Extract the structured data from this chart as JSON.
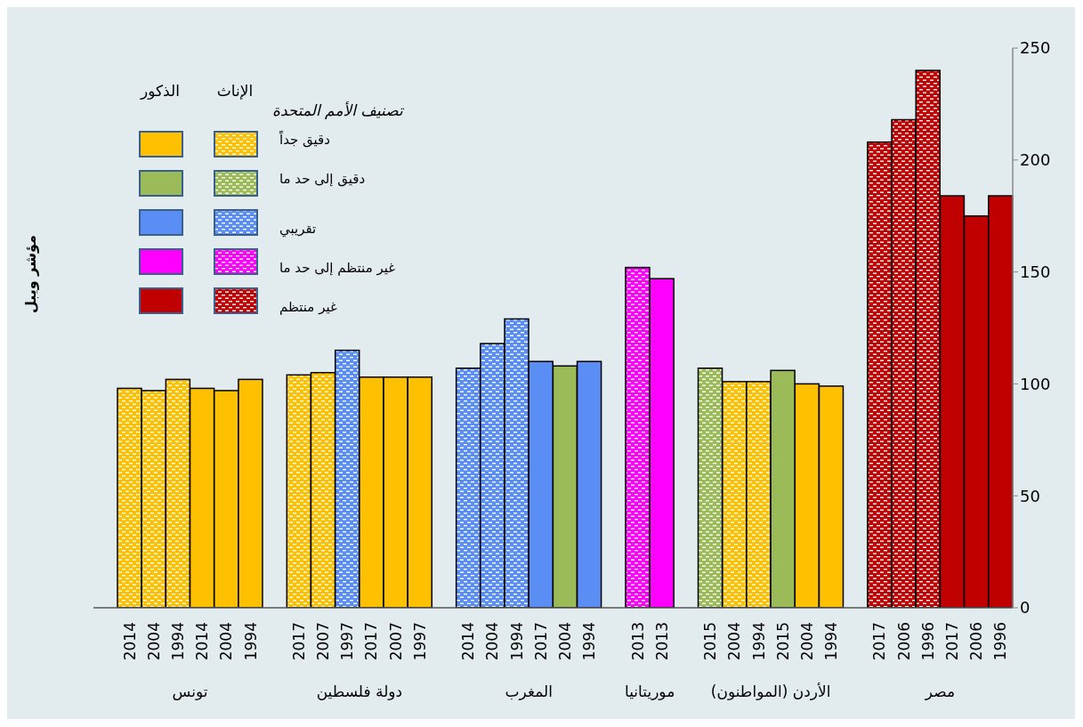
{
  "chart_data": {
    "type": "bar",
    "stacked": true,
    "ylabel": "مؤشر ويبل",
    "legend_title": "تصنيف الأمم المتحدة",
    "legend": "top left",
    "ylim": [
      0,
      250
    ],
    "yticks": [
      0,
      50,
      100,
      150,
      200,
      250
    ],
    "categories": [
      "2014",
      "2004",
      "1994",
      "2014",
      "2004",
      "1994",
      null,
      "2017",
      "2007",
      "1997",
      "2017",
      "2007",
      "1997",
      null,
      "2014",
      "2004",
      "1994",
      "2017",
      "2004",
      "1994",
      null,
      "2013",
      "2013",
      null,
      "2015",
      "2004",
      "1994",
      "2015",
      "2004",
      "1994",
      null,
      "2017",
      "2006",
      "1996",
      "2017",
      "2006",
      "1996"
    ],
    "annotations": [
      "تونس",
      "دولة فلسطين",
      "المغرب",
      "موريتانيا",
      "الأردن (المواطنون)",
      "مصر",
      "الإناث",
      "الذكور"
    ],
    "series": [
      {
        "name": "دقيق جداً",
        "color": "#ffc000",
        "values": [
          98,
          97,
          102,
          null,
          null,
          null,
          null,
          104,
          105,
          null,
          null,
          null,
          null,
          null,
          null,
          null,
          null,
          null,
          null,
          null,
          null,
          null,
          null,
          null,
          null,
          101,
          101,
          null,
          null,
          null,
          null,
          null,
          null,
          null,
          null,
          null,
          null
        ]
      },
      {
        "name": "دقيق إلى حد ما",
        "color": "#9bbb59",
        "values": [
          null,
          null,
          null,
          null,
          null,
          null,
          null,
          null,
          null,
          null,
          null,
          null,
          null,
          null,
          null,
          null,
          null,
          null,
          null,
          null,
          null,
          null,
          null,
          null,
          107,
          null,
          null,
          null,
          null,
          null,
          null,
          null,
          null,
          null,
          null,
          null,
          null
        ]
      },
      {
        "name": "تقريبي",
        "color": "#5b8ef5",
        "values": [
          null,
          null,
          null,
          null,
          null,
          null,
          null,
          null,
          null,
          115,
          null,
          null,
          null,
          null,
          107,
          118,
          129,
          null,
          null,
          null,
          null,
          null,
          null,
          null,
          null,
          null,
          null,
          null,
          null,
          null,
          null,
          null,
          null,
          null,
          null,
          null,
          null
        ]
      },
      {
        "name": "غير منتظم إلى حد ما",
        "color": "#ff00ff",
        "values": [
          null,
          null,
          null,
          null,
          null,
          null,
          null,
          null,
          null,
          null,
          null,
          null,
          null,
          null,
          null,
          null,
          null,
          null,
          null,
          null,
          null,
          152,
          null,
          null,
          null,
          null,
          null,
          null,
          null,
          null,
          null,
          null,
          null,
          null,
          null,
          null,
          null
        ]
      },
      {
        "name": "غير منتظم",
        "color": "#c00000",
        "values": [
          null,
          null,
          null,
          null,
          null,
          null,
          null,
          null,
          null,
          null,
          null,
          null,
          null,
          null,
          null,
          null,
          null,
          null,
          null,
          null,
          null,
          null,
          null,
          null,
          null,
          null,
          null,
          null,
          null,
          null,
          null,
          208,
          218,
          240,
          null,
          null,
          null
        ]
      },
      {
        "color": "#ffc000",
        "values": [
          null,
          null,
          null,
          98,
          97,
          102,
          null,
          null,
          null,
          null,
          103,
          103,
          103,
          null,
          null,
          null,
          null,
          null,
          null,
          null,
          null,
          null,
          null,
          null,
          null,
          null,
          null,
          null,
          100,
          99,
          null,
          null,
          null,
          null,
          null,
          null,
          null
        ]
      },
      {
        "color": "#9bbb59",
        "values": [
          null,
          null,
          null,
          null,
          null,
          null,
          null,
          null,
          null,
          null,
          null,
          null,
          null,
          null,
          null,
          null,
          null,
          null,
          108,
          null,
          null,
          null,
          null,
          null,
          null,
          null,
          null,
          106,
          null,
          null,
          null,
          null,
          null,
          null,
          null,
          null,
          null
        ]
      },
      {
        "color": "#5b8ef5",
        "values": [
          null,
          null,
          null,
          null,
          null,
          null,
          null,
          null,
          null,
          null,
          null,
          null,
          null,
          null,
          null,
          null,
          null,
          110,
          null,
          110,
          null,
          null,
          null,
          null,
          null,
          null,
          null,
          null,
          null,
          null,
          null,
          null,
          null,
          null,
          null,
          null,
          null
        ]
      },
      {
        "color": "#ff00ff",
        "values": [
          null,
          null,
          null,
          null,
          null,
          null,
          null,
          null,
          null,
          null,
          null,
          null,
          null,
          null,
          null,
          null,
          null,
          null,
          null,
          null,
          null,
          null,
          147,
          null,
          null,
          null,
          null,
          null,
          null,
          null,
          null,
          null,
          null,
          null,
          null,
          null,
          null
        ]
      },
      {
        "color": "#c00000",
        "values": [
          null,
          null,
          null,
          null,
          null,
          null,
          null,
          null,
          null,
          null,
          null,
          null,
          null,
          null,
          null,
          null,
          null,
          null,
          null,
          null,
          null,
          null,
          null,
          null,
          null,
          null,
          null,
          null,
          null,
          null,
          null,
          null,
          null,
          null,
          184,
          175,
          184
        ]
      }
    ]
  }
}
